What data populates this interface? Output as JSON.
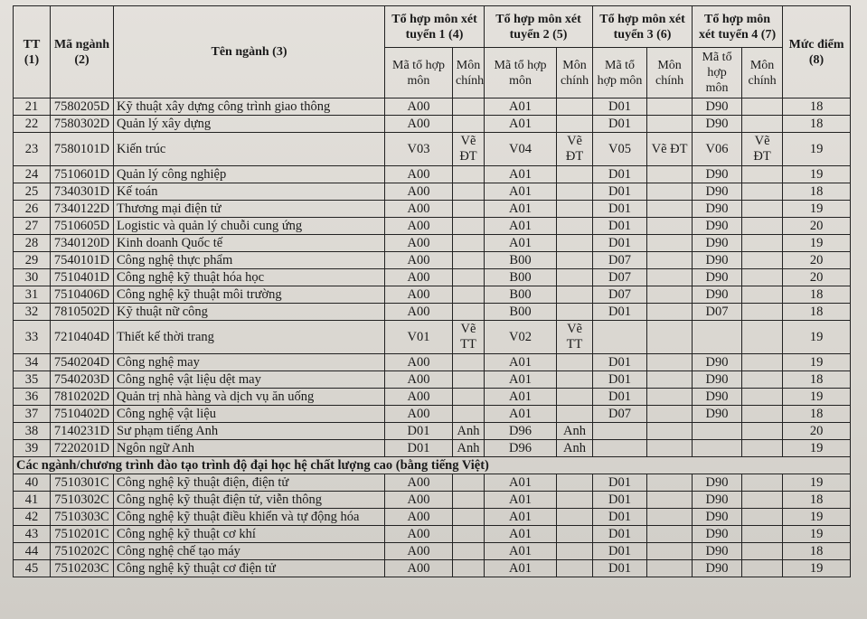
{
  "header": {
    "tt": "TT (1)",
    "ma_nganh": "Mã ngành (2)",
    "ten_nganh": "Tên ngành (3)",
    "groups": [
      "Tổ hợp môn xét tuyển 1 (4)",
      "Tổ hợp môn xét tuyển 2 (5)",
      "Tổ hợp môn xét tuyển 3 (6)",
      "Tổ hợp môn xét tuyển 4 (7)"
    ],
    "sub_ma": "Mã tổ hợp môn",
    "sub_mon": "Môn chính",
    "muc_diem": "Mức điểm (8)"
  },
  "rows": [
    [
      "21",
      "7580205D",
      "Kỹ thuật xây dựng công trình giao thông",
      "A00",
      "",
      "A01",
      "",
      "D01",
      "",
      "D90",
      "",
      "18"
    ],
    [
      "22",
      "7580302D",
      "Quản lý xây dựng",
      "A00",
      "",
      "A01",
      "",
      "D01",
      "",
      "D90",
      "",
      "18"
    ],
    [
      "23",
      "7580101D",
      "Kiến trúc",
      "V03",
      "Vẽ ĐT",
      "V04",
      "Vẽ ĐT",
      "V05",
      "Vẽ ĐT",
      "V06",
      "Vẽ ĐT",
      "19"
    ],
    [
      "24",
      "7510601D",
      "Quản lý công nghiệp",
      "A00",
      "",
      "A01",
      "",
      "D01",
      "",
      "D90",
      "",
      "19"
    ],
    [
      "25",
      "7340301D",
      "Kế toán",
      "A00",
      "",
      "A01",
      "",
      "D01",
      "",
      "D90",
      "",
      "18"
    ],
    [
      "26",
      "7340122D",
      "Thương mại điện tử",
      "A00",
      "",
      "A01",
      "",
      "D01",
      "",
      "D90",
      "",
      "19"
    ],
    [
      "27",
      "7510605D",
      "Logistic và quản lý chuỗi cung ứng",
      "A00",
      "",
      "A01",
      "",
      "D01",
      "",
      "D90",
      "",
      "20"
    ],
    [
      "28",
      "7340120D",
      "Kinh doanh Quốc tế",
      "A00",
      "",
      "A01",
      "",
      "D01",
      "",
      "D90",
      "",
      "19"
    ],
    [
      "29",
      "7540101D",
      "Công nghệ thực phẩm",
      "A00",
      "",
      "B00",
      "",
      "D07",
      "",
      "D90",
      "",
      "20"
    ],
    [
      "30",
      "7510401D",
      "Công nghệ kỹ thuật hóa học",
      "A00",
      "",
      "B00",
      "",
      "D07",
      "",
      "D90",
      "",
      "20"
    ],
    [
      "31",
      "7510406D",
      "Công nghệ kỹ thuật môi trường",
      "A00",
      "",
      "B00",
      "",
      "D07",
      "",
      "D90",
      "",
      "18"
    ],
    [
      "32",
      "7810502D",
      "Kỹ thuật nữ công",
      "A00",
      "",
      "B00",
      "",
      "D01",
      "",
      "D07",
      "",
      "18"
    ],
    [
      "33",
      "7210404D",
      "Thiết kế thời trang",
      "V01",
      "Vẽ TT",
      "V02",
      "Vẽ TT",
      "",
      "",
      "",
      "",
      "19"
    ],
    [
      "34",
      "7540204D",
      "Công nghệ may",
      "A00",
      "",
      "A01",
      "",
      "D01",
      "",
      "D90",
      "",
      "19"
    ],
    [
      "35",
      "7540203D",
      "Công nghệ vật liệu dệt may",
      "A00",
      "",
      "A01",
      "",
      "D01",
      "",
      "D90",
      "",
      "18"
    ],
    [
      "36",
      "7810202D",
      "Quản trị nhà hàng và dịch vụ ăn uống",
      "A00",
      "",
      "A01",
      "",
      "D01",
      "",
      "D90",
      "",
      "19"
    ],
    [
      "37",
      "7510402D",
      "Công nghệ vật liệu",
      "A00",
      "",
      "A01",
      "",
      "D07",
      "",
      "D90",
      "",
      "18"
    ],
    [
      "38",
      "7140231D",
      "Sư phạm tiếng Anh",
      "D01",
      "Anh",
      "D96",
      "Anh",
      "",
      "",
      "",
      "",
      "20"
    ],
    [
      "39",
      "7220201D",
      "Ngôn ngữ Anh",
      "D01",
      "Anh",
      "D96",
      "Anh",
      "",
      "",
      "",
      "",
      "19"
    ]
  ],
  "section_title": "Các ngành/chương trình đào tạo trình độ đại học hệ chất lượng cao (bằng tiếng Việt)",
  "rows2": [
    [
      "40",
      "7510301C",
      "Công nghệ kỹ thuật điện, điện tử",
      "A00",
      "",
      "A01",
      "",
      "D01",
      "",
      "D90",
      "",
      "19"
    ],
    [
      "41",
      "7510302C",
      "Công nghệ kỹ thuật điện tử, viễn thông",
      "A00",
      "",
      "A01",
      "",
      "D01",
      "",
      "D90",
      "",
      "18"
    ],
    [
      "42",
      "7510303C",
      "Công nghệ kỹ thuật điều khiển và tự động hóa",
      "A00",
      "",
      "A01",
      "",
      "D01",
      "",
      "D90",
      "",
      "19"
    ],
    [
      "43",
      "7510201C",
      "Công nghệ kỹ thuật cơ khí",
      "A00",
      "",
      "A01",
      "",
      "D01",
      "",
      "D90",
      "",
      "19"
    ],
    [
      "44",
      "7510202C",
      "Công nghệ chế tạo máy",
      "A00",
      "",
      "A01",
      "",
      "D01",
      "",
      "D90",
      "",
      "18"
    ],
    [
      "45",
      "7510203C",
      "Công nghệ kỹ thuật cơ điện tử",
      "A00",
      "",
      "A01",
      "",
      "D01",
      "",
      "D90",
      "",
      "19"
    ]
  ]
}
